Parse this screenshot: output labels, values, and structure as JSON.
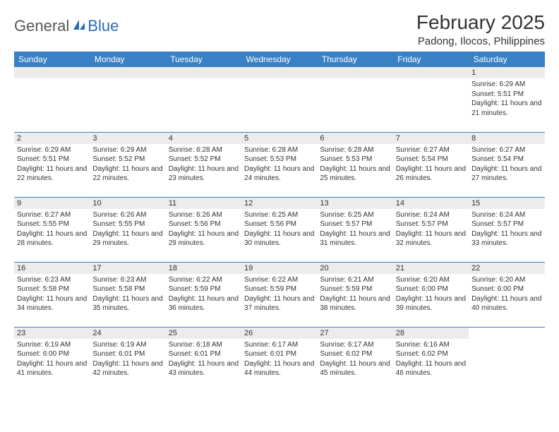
{
  "brand": {
    "part1": "General",
    "part2": "Blue"
  },
  "title": "February 2025",
  "location": "Padong, Ilocos, Philippines",
  "colors": {
    "header_bg": "#3a80c4",
    "header_text": "#ffffff",
    "daynum_bg": "#ececec",
    "border": "#3a80c4",
    "brand_gray": "#555555",
    "brand_blue": "#2b6bb0",
    "text": "#333333"
  },
  "typography": {
    "title_fontsize": 28,
    "location_fontsize": 15,
    "dayheader_fontsize": 12,
    "cell_fontsize": 10
  },
  "day_headers": [
    "Sunday",
    "Monday",
    "Tuesday",
    "Wednesday",
    "Thursday",
    "Friday",
    "Saturday"
  ],
  "weeks": [
    [
      null,
      null,
      null,
      null,
      null,
      null,
      {
        "n": "1",
        "sunrise": "6:29 AM",
        "sunset": "5:51 PM",
        "daylight": "11 hours and 21 minutes."
      }
    ],
    [
      {
        "n": "2",
        "sunrise": "6:29 AM",
        "sunset": "5:51 PM",
        "daylight": "11 hours and 22 minutes."
      },
      {
        "n": "3",
        "sunrise": "6:29 AM",
        "sunset": "5:52 PM",
        "daylight": "11 hours and 22 minutes."
      },
      {
        "n": "4",
        "sunrise": "6:28 AM",
        "sunset": "5:52 PM",
        "daylight": "11 hours and 23 minutes."
      },
      {
        "n": "5",
        "sunrise": "6:28 AM",
        "sunset": "5:53 PM",
        "daylight": "11 hours and 24 minutes."
      },
      {
        "n": "6",
        "sunrise": "6:28 AM",
        "sunset": "5:53 PM",
        "daylight": "11 hours and 25 minutes."
      },
      {
        "n": "7",
        "sunrise": "6:27 AM",
        "sunset": "5:54 PM",
        "daylight": "11 hours and 26 minutes."
      },
      {
        "n": "8",
        "sunrise": "6:27 AM",
        "sunset": "5:54 PM",
        "daylight": "11 hours and 27 minutes."
      }
    ],
    [
      {
        "n": "9",
        "sunrise": "6:27 AM",
        "sunset": "5:55 PM",
        "daylight": "11 hours and 28 minutes."
      },
      {
        "n": "10",
        "sunrise": "6:26 AM",
        "sunset": "5:55 PM",
        "daylight": "11 hours and 29 minutes."
      },
      {
        "n": "11",
        "sunrise": "6:26 AM",
        "sunset": "5:56 PM",
        "daylight": "11 hours and 29 minutes."
      },
      {
        "n": "12",
        "sunrise": "6:25 AM",
        "sunset": "5:56 PM",
        "daylight": "11 hours and 30 minutes."
      },
      {
        "n": "13",
        "sunrise": "6:25 AM",
        "sunset": "5:57 PM",
        "daylight": "11 hours and 31 minutes."
      },
      {
        "n": "14",
        "sunrise": "6:24 AM",
        "sunset": "5:57 PM",
        "daylight": "11 hours and 32 minutes."
      },
      {
        "n": "15",
        "sunrise": "6:24 AM",
        "sunset": "5:57 PM",
        "daylight": "11 hours and 33 minutes."
      }
    ],
    [
      {
        "n": "16",
        "sunrise": "6:23 AM",
        "sunset": "5:58 PM",
        "daylight": "11 hours and 34 minutes."
      },
      {
        "n": "17",
        "sunrise": "6:23 AM",
        "sunset": "5:58 PM",
        "daylight": "11 hours and 35 minutes."
      },
      {
        "n": "18",
        "sunrise": "6:22 AM",
        "sunset": "5:59 PM",
        "daylight": "11 hours and 36 minutes."
      },
      {
        "n": "19",
        "sunrise": "6:22 AM",
        "sunset": "5:59 PM",
        "daylight": "11 hours and 37 minutes."
      },
      {
        "n": "20",
        "sunrise": "6:21 AM",
        "sunset": "5:59 PM",
        "daylight": "11 hours and 38 minutes."
      },
      {
        "n": "21",
        "sunrise": "6:20 AM",
        "sunset": "6:00 PM",
        "daylight": "11 hours and 39 minutes."
      },
      {
        "n": "22",
        "sunrise": "6:20 AM",
        "sunset": "6:00 PM",
        "daylight": "11 hours and 40 minutes."
      }
    ],
    [
      {
        "n": "23",
        "sunrise": "6:19 AM",
        "sunset": "6:00 PM",
        "daylight": "11 hours and 41 minutes."
      },
      {
        "n": "24",
        "sunrise": "6:19 AM",
        "sunset": "6:01 PM",
        "daylight": "11 hours and 42 minutes."
      },
      {
        "n": "25",
        "sunrise": "6:18 AM",
        "sunset": "6:01 PM",
        "daylight": "11 hours and 43 minutes."
      },
      {
        "n": "26",
        "sunrise": "6:17 AM",
        "sunset": "6:01 PM",
        "daylight": "11 hours and 44 minutes."
      },
      {
        "n": "27",
        "sunrise": "6:17 AM",
        "sunset": "6:02 PM",
        "daylight": "11 hours and 45 minutes."
      },
      {
        "n": "28",
        "sunrise": "6:16 AM",
        "sunset": "6:02 PM",
        "daylight": "11 hours and 46 minutes."
      },
      null
    ]
  ],
  "labels": {
    "sunrise": "Sunrise:",
    "sunset": "Sunset:",
    "daylight": "Daylight:"
  }
}
